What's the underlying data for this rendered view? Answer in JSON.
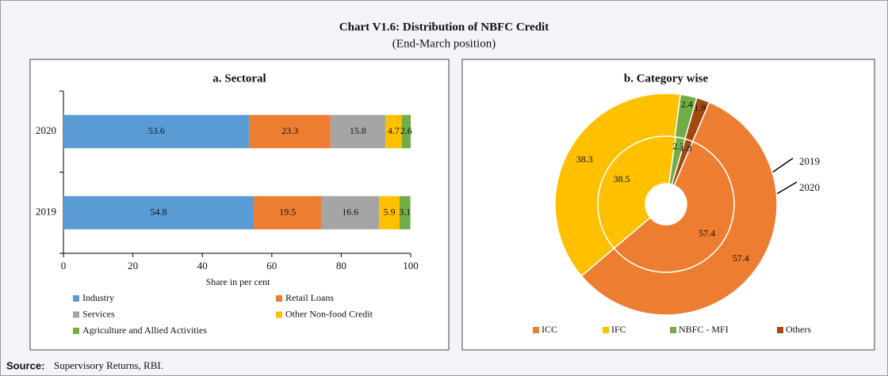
{
  "header": {
    "title": "Chart V1.6: Distribution of NBFC Credit",
    "subtitle": "(End-March position)"
  },
  "footer": {
    "source_label": "Source:",
    "source": "Supervisory Returns, RBI."
  },
  "chart_data": [
    {
      "type": "stacked_barh",
      "title": "a. Sectoral",
      "x_label": "Share in per cent",
      "categories": [
        "2020",
        "2019"
      ],
      "series": [
        {
          "name": "Industry",
          "color": "#5b9bd5",
          "values": [
            53.6,
            54.8
          ]
        },
        {
          "name": "Retail Loans",
          "color": "#ed7d31",
          "values": [
            23.3,
            19.5
          ]
        },
        {
          "name": "Services",
          "color": "#a5a5a5",
          "values": [
            15.8,
            16.6
          ]
        },
        {
          "name": "Other Non-food Credit",
          "color": "#ffc000",
          "values": [
            4.7,
            5.9
          ]
        },
        {
          "name": "Agriculture and Allied Activities",
          "color": "#70ad47",
          "values": [
            2.6,
            3.1
          ]
        }
      ],
      "xlim": [
        0,
        100
      ],
      "xticks": [
        0,
        20,
        40,
        60,
        80,
        100
      ]
    },
    {
      "type": "doughnut",
      "title": "b. Category wise",
      "categories": [
        "ICC",
        "IFC",
        "NBFC - MFI",
        "Others"
      ],
      "colors": [
        "#ed7d31",
        "#ffc000",
        "#70ad47",
        "#a5480f"
      ],
      "series": [
        {
          "name": "2019",
          "values": [
            57.4,
            38.5,
            2.3,
            1.8
          ]
        },
        {
          "name": "2020",
          "values": [
            57.4,
            38.3,
            2.4,
            1.9
          ]
        }
      ]
    }
  ]
}
